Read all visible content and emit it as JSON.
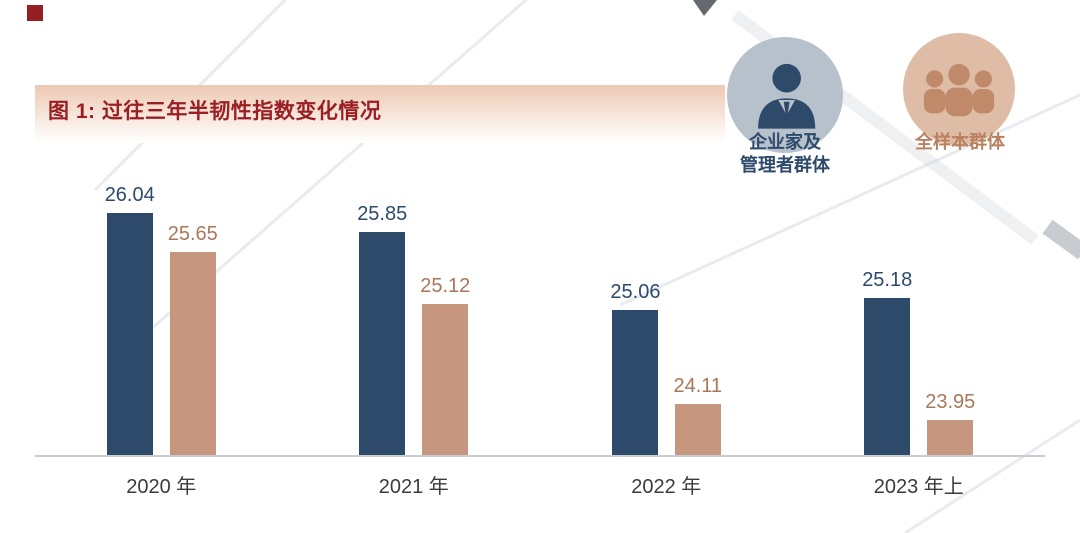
{
  "decor": {
    "corner_square_color": "#951f23"
  },
  "header": {
    "title": "图 1: 过往三年半韧性指数变化情况",
    "title_color": "#9a1f24",
    "banner_from": "#edc9b3",
    "banner_to": "#ffffff"
  },
  "legend": {
    "entrepreneurs": {
      "label_line1": "企业家及",
      "label_line2": "管理者群体",
      "text_color": "#2d4a6b",
      "circle_color": "#b7c1cc",
      "icon_color": "#2d4a6b",
      "icon": "businessman-icon"
    },
    "full_sample": {
      "label": "全样本群体",
      "text_color": "#b9815f",
      "circle_color": "#dfbca6",
      "icon_color": "#c08a6a",
      "icon": "people-group-icon"
    }
  },
  "chart_data": {
    "type": "bar",
    "title": "图 1: 过往三年半韧性指数变化情况",
    "categories": [
      "2020 年",
      "2021 年",
      "2022 年",
      "2023 年上"
    ],
    "series": [
      {
        "name": "企业家及管理者群体",
        "color": "#2d4a6b",
        "label_color": "#2d4a6b",
        "values": [
          26.04,
          25.85,
          25.06,
          25.18
        ]
      },
      {
        "name": "全样本群体",
        "color": "#c6977e",
        "label_color": "#aa765a",
        "values": [
          25.65,
          25.12,
          24.11,
          23.95
        ]
      }
    ],
    "ylim": [
      23.6,
      26.3
    ],
    "grid": false,
    "legend_position": "top-right",
    "axis_color": "#c9cdd1",
    "category_color": "#3c3c3c"
  }
}
